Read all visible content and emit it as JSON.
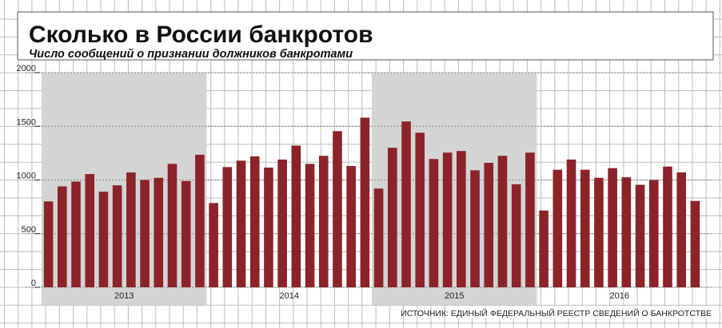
{
  "chart_data": {
    "type": "bar",
    "title": "Сколько в России банкротов",
    "subtitle": "Число сообщений о признании должников банкротами",
    "source": "ИСТОЧНИК: ЕДИНЫЙ ФЕДЕРАЛЬНЫЙ РЕЕСТР СВЕДЕНИЙ О БАНКРОТСТВЕ",
    "ylim": [
      0,
      2000
    ],
    "yticks": [
      "0",
      "500",
      "1000",
      "1500",
      "2000"
    ],
    "grid": true,
    "year_groups": [
      {
        "label": "2013",
        "months": 12,
        "shaded": true
      },
      {
        "label": "2014",
        "months": 12,
        "shaded": false
      },
      {
        "label": "2015",
        "months": 12,
        "shaded": true
      },
      {
        "label": "2016",
        "months": 12,
        "shaded": false
      }
    ],
    "values": [
      800,
      940,
      985,
      1055,
      890,
      950,
      1070,
      1000,
      1020,
      1150,
      990,
      1235,
      785,
      1120,
      1180,
      1220,
      1115,
      1190,
      1320,
      1150,
      1225,
      1455,
      1130,
      1580,
      920,
      1300,
      1545,
      1440,
      1195,
      1255,
      1270,
      1090,
      1160,
      1225,
      960,
      1255,
      715,
      1095,
      1190,
      1095,
      1020,
      1110,
      1025,
      955,
      1000,
      1125,
      1070,
      805
    ],
    "colors": {
      "bar": "#8b2329",
      "shade": "#d4d4d4",
      "grid": "#9a9a9a",
      "background": "#ffffff"
    }
  }
}
